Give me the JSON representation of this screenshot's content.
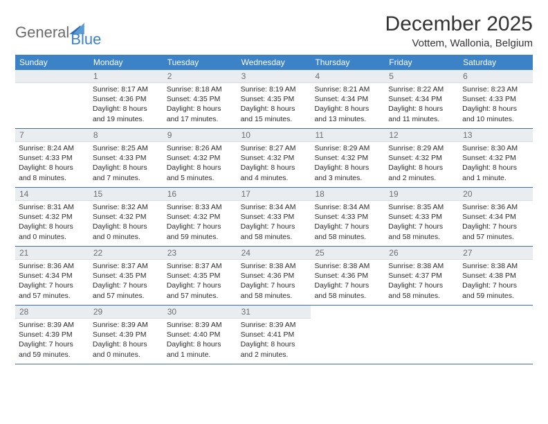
{
  "brand": {
    "text1": "General",
    "text2": "Blue"
  },
  "title": "December 2025",
  "location": "Vottem, Wallonia, Belgium",
  "colors": {
    "header_bg": "#3b82c7",
    "daynum_bg": "#e9edf0",
    "border": "#3b6fa8",
    "text": "#333333",
    "logo_gray": "#6b6b6b"
  },
  "weekdays": [
    "Sunday",
    "Monday",
    "Tuesday",
    "Wednesday",
    "Thursday",
    "Friday",
    "Saturday"
  ],
  "weeks": [
    [
      {
        "blank": true
      },
      {
        "n": "1",
        "sr": "8:17 AM",
        "ss": "4:36 PM",
        "dl": "8 hours and 19 minutes."
      },
      {
        "n": "2",
        "sr": "8:18 AM",
        "ss": "4:35 PM",
        "dl": "8 hours and 17 minutes."
      },
      {
        "n": "3",
        "sr": "8:19 AM",
        "ss": "4:35 PM",
        "dl": "8 hours and 15 minutes."
      },
      {
        "n": "4",
        "sr": "8:21 AM",
        "ss": "4:34 PM",
        "dl": "8 hours and 13 minutes."
      },
      {
        "n": "5",
        "sr": "8:22 AM",
        "ss": "4:34 PM",
        "dl": "8 hours and 11 minutes."
      },
      {
        "n": "6",
        "sr": "8:23 AM",
        "ss": "4:33 PM",
        "dl": "8 hours and 10 minutes."
      }
    ],
    [
      {
        "n": "7",
        "sr": "8:24 AM",
        "ss": "4:33 PM",
        "dl": "8 hours and 8 minutes."
      },
      {
        "n": "8",
        "sr": "8:25 AM",
        "ss": "4:33 PM",
        "dl": "8 hours and 7 minutes."
      },
      {
        "n": "9",
        "sr": "8:26 AM",
        "ss": "4:32 PM",
        "dl": "8 hours and 5 minutes."
      },
      {
        "n": "10",
        "sr": "8:27 AM",
        "ss": "4:32 PM",
        "dl": "8 hours and 4 minutes."
      },
      {
        "n": "11",
        "sr": "8:29 AM",
        "ss": "4:32 PM",
        "dl": "8 hours and 3 minutes."
      },
      {
        "n": "12",
        "sr": "8:29 AM",
        "ss": "4:32 PM",
        "dl": "8 hours and 2 minutes."
      },
      {
        "n": "13",
        "sr": "8:30 AM",
        "ss": "4:32 PM",
        "dl": "8 hours and 1 minute."
      }
    ],
    [
      {
        "n": "14",
        "sr": "8:31 AM",
        "ss": "4:32 PM",
        "dl": "8 hours and 0 minutes."
      },
      {
        "n": "15",
        "sr": "8:32 AM",
        "ss": "4:32 PM",
        "dl": "8 hours and 0 minutes."
      },
      {
        "n": "16",
        "sr": "8:33 AM",
        "ss": "4:32 PM",
        "dl": "7 hours and 59 minutes."
      },
      {
        "n": "17",
        "sr": "8:34 AM",
        "ss": "4:33 PM",
        "dl": "7 hours and 58 minutes."
      },
      {
        "n": "18",
        "sr": "8:34 AM",
        "ss": "4:33 PM",
        "dl": "7 hours and 58 minutes."
      },
      {
        "n": "19",
        "sr": "8:35 AM",
        "ss": "4:33 PM",
        "dl": "7 hours and 58 minutes."
      },
      {
        "n": "20",
        "sr": "8:36 AM",
        "ss": "4:34 PM",
        "dl": "7 hours and 57 minutes."
      }
    ],
    [
      {
        "n": "21",
        "sr": "8:36 AM",
        "ss": "4:34 PM",
        "dl": "7 hours and 57 minutes."
      },
      {
        "n": "22",
        "sr": "8:37 AM",
        "ss": "4:35 PM",
        "dl": "7 hours and 57 minutes."
      },
      {
        "n": "23",
        "sr": "8:37 AM",
        "ss": "4:35 PM",
        "dl": "7 hours and 57 minutes."
      },
      {
        "n": "24",
        "sr": "8:38 AM",
        "ss": "4:36 PM",
        "dl": "7 hours and 58 minutes."
      },
      {
        "n": "25",
        "sr": "8:38 AM",
        "ss": "4:36 PM",
        "dl": "7 hours and 58 minutes."
      },
      {
        "n": "26",
        "sr": "8:38 AM",
        "ss": "4:37 PM",
        "dl": "7 hours and 58 minutes."
      },
      {
        "n": "27",
        "sr": "8:38 AM",
        "ss": "4:38 PM",
        "dl": "7 hours and 59 minutes."
      }
    ],
    [
      {
        "n": "28",
        "sr": "8:39 AM",
        "ss": "4:39 PM",
        "dl": "7 hours and 59 minutes."
      },
      {
        "n": "29",
        "sr": "8:39 AM",
        "ss": "4:39 PM",
        "dl": "8 hours and 0 minutes."
      },
      {
        "n": "30",
        "sr": "8:39 AM",
        "ss": "4:40 PM",
        "dl": "8 hours and 1 minute."
      },
      {
        "n": "31",
        "sr": "8:39 AM",
        "ss": "4:41 PM",
        "dl": "8 hours and 2 minutes."
      },
      {
        "blank": true
      },
      {
        "blank": true
      },
      {
        "blank": true
      }
    ]
  ],
  "labels": {
    "sunrise": "Sunrise: ",
    "sunset": "Sunset: ",
    "daylight": "Daylight: "
  }
}
